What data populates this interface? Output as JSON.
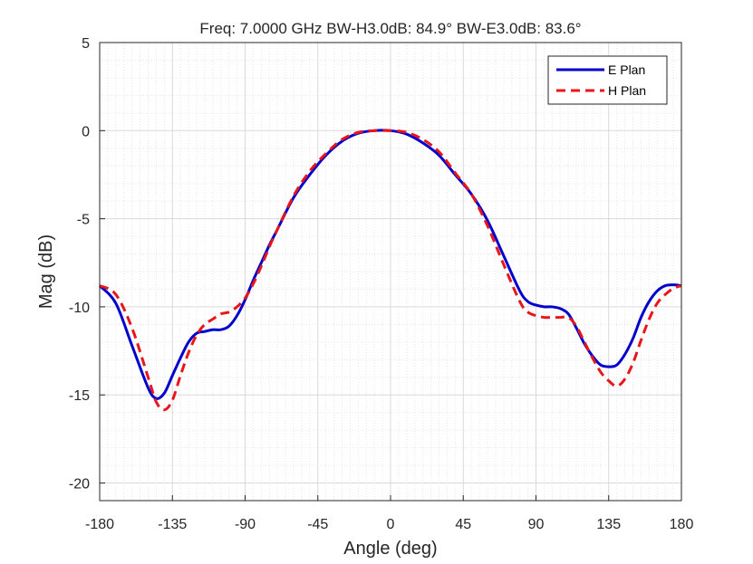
{
  "chart_data": {
    "type": "line",
    "title": "Freq: 7.0000 GHz    BW-H3.0dB: 84.9°    BW-E3.0dB: 83.6°",
    "xlabel": "Angle (deg)",
    "ylabel": "Mag (dB)",
    "xlim": [
      -180,
      180
    ],
    "ylim": [
      -21,
      5
    ],
    "xticks": [
      -180,
      -135,
      -90,
      -45,
      0,
      45,
      90,
      135,
      180
    ],
    "xtick_labels": [
      "-180",
      "-135",
      "-90",
      "-45",
      "0",
      "45",
      "90",
      "135",
      "180"
    ],
    "yticks": [
      5,
      0,
      -5,
      -10,
      -15,
      -20
    ],
    "ytick_labels": [
      "5",
      "0",
      "-5",
      "-10",
      "-15",
      "-20"
    ],
    "grid": true,
    "minor_grid": true,
    "legend_position": "top-right",
    "series": [
      {
        "name": "E Plan",
        "color": "#0000cc",
        "style": "solid",
        "x": [
          -180,
          -170,
          -160,
          -150,
          -145,
          -140,
          -135,
          -130,
          -125,
          -120,
          -115,
          -110,
          -105,
          -100,
          -95,
          -90,
          -85,
          -80,
          -75,
          -70,
          -60,
          -50,
          -40,
          -30,
          -20,
          -10,
          0,
          10,
          20,
          30,
          40,
          50,
          60,
          70,
          80,
          85,
          90,
          95,
          100,
          105,
          110,
          115,
          120,
          125,
          130,
          135,
          140,
          145,
          150,
          155,
          160,
          165,
          170,
          175,
          180
        ],
        "y": [
          -8.8,
          -9.8,
          -12.2,
          -14.6,
          -15.2,
          -14.9,
          -13.9,
          -12.9,
          -12.0,
          -11.5,
          -11.4,
          -11.3,
          -11.3,
          -11.1,
          -10.5,
          -9.6,
          -8.5,
          -7.5,
          -6.5,
          -5.6,
          -3.8,
          -2.5,
          -1.4,
          -0.6,
          -0.15,
          0.0,
          0.0,
          -0.2,
          -0.7,
          -1.4,
          -2.5,
          -3.6,
          -5.1,
          -7.1,
          -9.1,
          -9.7,
          -9.9,
          -10.0,
          -10.0,
          -10.1,
          -10.4,
          -11.2,
          -12.1,
          -12.8,
          -13.3,
          -13.4,
          -13.3,
          -12.7,
          -11.8,
          -10.6,
          -9.7,
          -9.1,
          -8.8,
          -8.75,
          -8.8
        ]
      },
      {
        "name": "H Plan",
        "color": "#e8161b",
        "style": "dashed",
        "x": [
          -180,
          -170,
          -160,
          -150,
          -145,
          -140,
          -135,
          -130,
          -125,
          -120,
          -115,
          -110,
          -105,
          -100,
          -95,
          -90,
          -85,
          -80,
          -75,
          -70,
          -60,
          -50,
          -40,
          -30,
          -20,
          -10,
          0,
          10,
          20,
          30,
          40,
          50,
          60,
          70,
          80,
          85,
          90,
          95,
          100,
          105,
          110,
          115,
          120,
          125,
          130,
          135,
          140,
          145,
          150,
          155,
          160,
          165,
          170,
          175,
          180
        ],
        "y": [
          -8.8,
          -9.3,
          -11.2,
          -14.0,
          -15.4,
          -15.85,
          -15.3,
          -13.9,
          -12.6,
          -11.6,
          -11.0,
          -10.7,
          -10.4,
          -10.3,
          -10.0,
          -9.5,
          -8.7,
          -7.7,
          -6.6,
          -5.6,
          -3.7,
          -2.3,
          -1.3,
          -0.5,
          -0.1,
          0.0,
          0.0,
          -0.1,
          -0.5,
          -1.2,
          -2.4,
          -3.6,
          -5.4,
          -7.6,
          -9.7,
          -10.3,
          -10.5,
          -10.6,
          -10.6,
          -10.6,
          -10.6,
          -11.1,
          -12.0,
          -12.9,
          -13.7,
          -14.2,
          -14.5,
          -14.1,
          -13.2,
          -11.9,
          -10.7,
          -9.8,
          -9.3,
          -8.95,
          -8.8
        ]
      }
    ]
  }
}
